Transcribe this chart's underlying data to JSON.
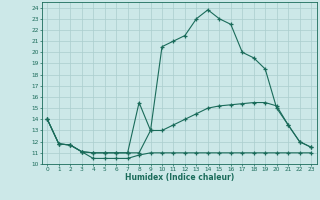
{
  "bg_color": "#cce8e8",
  "line_color": "#1a6b5a",
  "grid_color": "#aacece",
  "xlabel": "Humidex (Indice chaleur)",
  "xlim": [
    -0.5,
    23.5
  ],
  "ylim": [
    10,
    24.5
  ],
  "xticks": [
    0,
    1,
    2,
    3,
    4,
    5,
    6,
    7,
    8,
    9,
    10,
    11,
    12,
    13,
    14,
    15,
    16,
    17,
    18,
    19,
    20,
    21,
    22,
    23
  ],
  "yticks": [
    10,
    11,
    12,
    13,
    14,
    15,
    16,
    17,
    18,
    19,
    20,
    21,
    22,
    23,
    24
  ],
  "line1_x": [
    0,
    1,
    2,
    3,
    4,
    5,
    6,
    7,
    8,
    9,
    10,
    11,
    12,
    13,
    14,
    15,
    16,
    17,
    18,
    19,
    20,
    21,
    22,
    23
  ],
  "line1_y": [
    14,
    11.8,
    11.7,
    11.1,
    10.5,
    10.5,
    10.5,
    10.5,
    10.8,
    11,
    11,
    11,
    11,
    11,
    11,
    11,
    11,
    11,
    11,
    11,
    11,
    11,
    11,
    11
  ],
  "line2_x": [
    0,
    1,
    2,
    3,
    4,
    5,
    6,
    7,
    8,
    9,
    10,
    11,
    12,
    13,
    14,
    15,
    16,
    17,
    18,
    19,
    20,
    21,
    22,
    23
  ],
  "line2_y": [
    14,
    11.8,
    11.7,
    11.1,
    11,
    11,
    11,
    11,
    11,
    13,
    20.5,
    21,
    21.5,
    23,
    23.8,
    23,
    22.5,
    20,
    19.5,
    18.5,
    15,
    13.5,
    12,
    11.5
  ],
  "line3_x": [
    0,
    1,
    2,
    3,
    4,
    5,
    6,
    7,
    8,
    9,
    10,
    11,
    12,
    13,
    14,
    15,
    16,
    17,
    18,
    19,
    20,
    21,
    22,
    23
  ],
  "line3_y": [
    14,
    11.8,
    11.7,
    11.1,
    11,
    11,
    11,
    11,
    15.5,
    13,
    13,
    13.5,
    14,
    14.5,
    15,
    15.2,
    15.3,
    15.4,
    15.5,
    15.5,
    15.2,
    13.5,
    12,
    11.5
  ]
}
